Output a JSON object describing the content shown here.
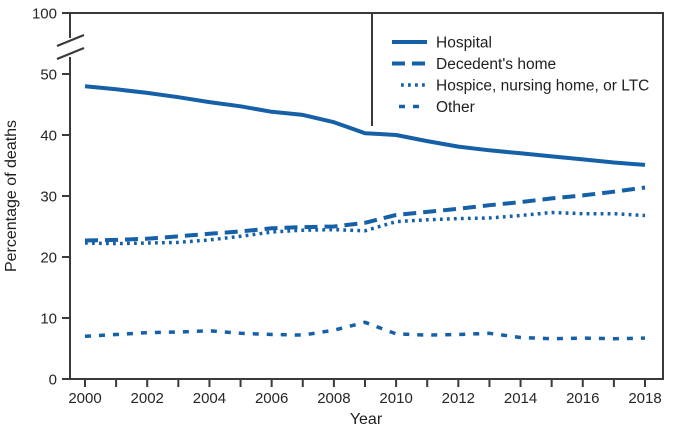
{
  "figure": {
    "colors": {
      "series_blue": "#1660A8",
      "axis": "#3A3A3A",
      "text": "#1F1F1F"
    }
  },
  "chart_data": {
    "type": "line",
    "title": "",
    "xlabel": "Year",
    "ylabel": "Percentage of deaths",
    "x": [
      2000,
      2001,
      2002,
      2003,
      2004,
      2005,
      2006,
      2007,
      2008,
      2009,
      2010,
      2011,
      2012,
      2013,
      2014,
      2015,
      2016,
      2017,
      2018
    ],
    "series": [
      {
        "name": "Hospital",
        "style": "solid",
        "values": [
          48.0,
          47.5,
          46.9,
          46.2,
          45.4,
          44.7,
          43.8,
          43.3,
          42.1,
          40.3,
          40.0,
          39.0,
          38.1,
          37.5,
          37.0,
          36.5,
          36.0,
          35.5,
          35.1
        ]
      },
      {
        "name": "Decedent's home",
        "style": "long-dash",
        "values": [
          22.7,
          22.8,
          23.0,
          23.4,
          23.8,
          24.2,
          24.7,
          24.9,
          25.0,
          25.6,
          26.9,
          27.4,
          27.9,
          28.5,
          29.0,
          29.6,
          30.1,
          30.7,
          31.4
        ]
      },
      {
        "name": "Hospice, nursing home, or LTC",
        "style": "dotted",
        "values": [
          22.3,
          22.2,
          22.3,
          22.4,
          22.8,
          23.4,
          24.1,
          24.4,
          24.5,
          24.3,
          25.8,
          26.1,
          26.3,
          26.4,
          26.8,
          27.3,
          27.1,
          27.1,
          26.8
        ]
      },
      {
        "name": "Other",
        "style": "short-dash",
        "values": [
          7.0,
          7.3,
          7.6,
          7.7,
          7.9,
          7.5,
          7.3,
          7.2,
          8.0,
          9.3,
          7.4,
          7.2,
          7.3,
          7.5,
          6.8,
          6.6,
          6.7,
          6.6,
          6.7
        ]
      }
    ],
    "ylim": [
      0,
      100
    ],
    "y_axis_break": {
      "between": [
        50,
        100
      ]
    },
    "yticks": [
      0,
      10,
      20,
      30,
      40,
      50,
      100
    ],
    "xtick_labels": [
      2000,
      2002,
      2004,
      2006,
      2008,
      2010,
      2012,
      2014,
      2016,
      2018
    ],
    "grid": false,
    "legend_position": "top-right"
  }
}
